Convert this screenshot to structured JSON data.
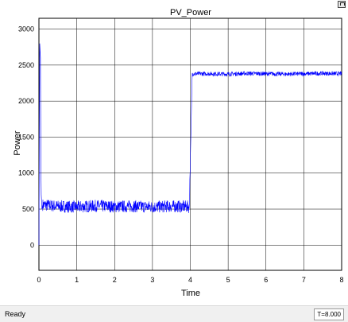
{
  "window": {
    "status": "Ready",
    "time_readout": "T=8.000"
  },
  "icons": {
    "restore": "restore-icon"
  },
  "chart_data": {
    "type": "line",
    "title": "PV_Power",
    "xlabel": "Time",
    "ylabel": "Power",
    "xlim": [
      0,
      8
    ],
    "ylim": [
      -350,
      3150
    ],
    "xticks": [
      0,
      1,
      2,
      3,
      4,
      5,
      6,
      7,
      8
    ],
    "yticks": [
      0,
      500,
      1000,
      1500,
      2000,
      2500,
      3000
    ],
    "grid": true,
    "line_color": "#0000ff",
    "series": [
      {
        "x": [
          0.0,
          0.02,
          0.04,
          0.05,
          0.06,
          0.08,
          0.1,
          0.5,
          1.0,
          1.5,
          2.0,
          2.5,
          3.0,
          3.5,
          3.95,
          3.97,
          4.0,
          4.05,
          4.5,
          5.0,
          5.5,
          6.0,
          6.5,
          7.0,
          7.5,
          8.0
        ],
        "y": [
          0,
          2800,
          2600,
          1200,
          700,
          500,
          560,
          540,
          530,
          545,
          535,
          540,
          530,
          540,
          535,
          500,
          1150,
          2380,
          2380,
          2375,
          2385,
          2380,
          2375,
          2380,
          2385,
          2380
        ],
        "noise_band_low": [
          0.1,
          4.0,
          170
        ],
        "noise_band_high": [
          4.0,
          8.0,
          60
        ]
      }
    ]
  }
}
